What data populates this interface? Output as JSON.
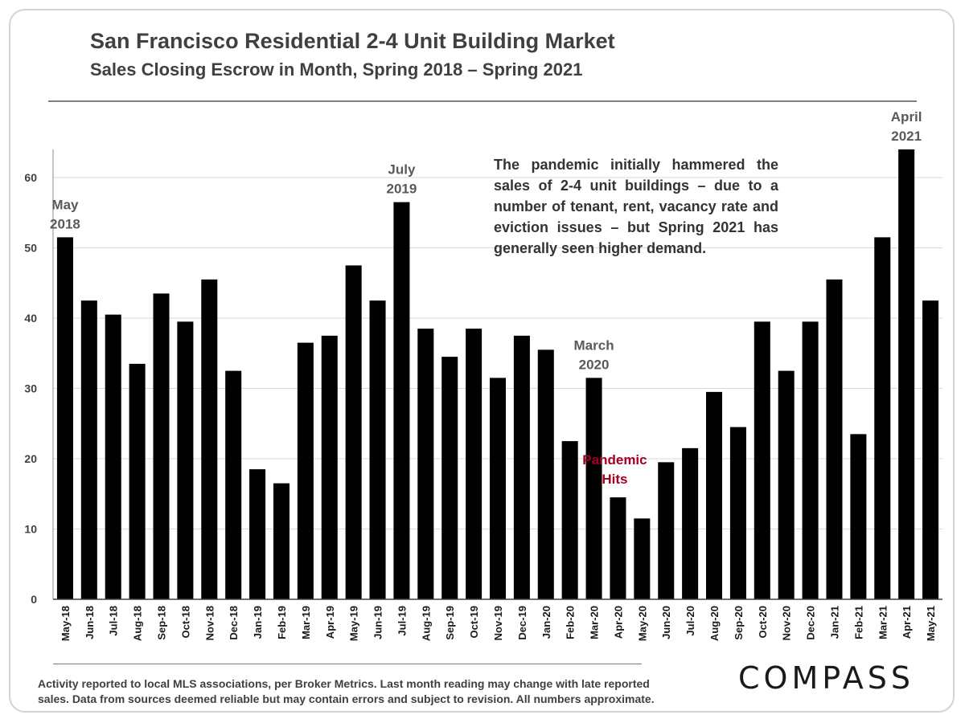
{
  "header": {
    "title": "San Francisco Residential 2-4 Unit Building Market",
    "subtitle": "Sales Closing Escrow in Month, Spring 2018 – Spring 2021"
  },
  "note": "The pandemic initially hammered the sales of 2-4 unit buildings – due to a number of tenant, rent, vacancy rate and eviction issues – but Spring 2021 has generally seen higher demand.",
  "footnote": "Activity reported to local MLS associations, per Broker Metrics. Last month reading may change with late reported sales. Data from sources deemed reliable but may contain errors and subject to revision. All numbers approximate.",
  "logo": "COMPASS",
  "colors": {
    "bar": "#000000",
    "grid": "#d9d9d9",
    "pandemic": "#a50021"
  },
  "chart_data": {
    "type": "bar",
    "title": "San Francisco Residential 2-4 Unit Building Market",
    "subtitle": "Sales Closing Escrow in Month, Spring 2018 – Spring 2021",
    "xlabel": "",
    "ylabel": "",
    "ylim": [
      0,
      64
    ],
    "yticks": [
      0,
      10,
      20,
      30,
      40,
      50,
      60
    ],
    "grid": true,
    "categories": [
      "May-18",
      "Jun-18",
      "Jul-18",
      "Aug-18",
      "Sep-18",
      "Oct-18",
      "Nov-18",
      "Dec-18",
      "Jan-19",
      "Feb-19",
      "Mar-19",
      "Apr-19",
      "May-19",
      "Jun-19",
      "Jul-19",
      "Aug-19",
      "Sep-19",
      "Oct-19",
      "Nov-19",
      "Dec-19",
      "Jan-20",
      "Feb-20",
      "Mar-20",
      "Apr-20",
      "May-20",
      "Jun-20",
      "Jul-20",
      "Aug-20",
      "Sep-20",
      "Oct-20",
      "Nov-20",
      "Dec-20",
      "Jan-21",
      "Feb-21",
      "Mar-21",
      "Apr-21",
      "May-21"
    ],
    "values": [
      51.5,
      42.5,
      40.5,
      33.5,
      43.5,
      39.5,
      45.5,
      32.5,
      18.5,
      16.5,
      36.5,
      37.5,
      47.5,
      42.5,
      56.5,
      38.5,
      34.5,
      38.5,
      31.5,
      37.5,
      35.5,
      22.5,
      31.5,
      14.5,
      11.5,
      19.5,
      21.5,
      29.5,
      24.5,
      39.5,
      32.5,
      39.5,
      45.5,
      23.5,
      51.5,
      64,
      42.5
    ],
    "annotations": [
      {
        "index": 0,
        "lines": [
          "May",
          "2018"
        ],
        "style": "normal"
      },
      {
        "index": 14,
        "lines": [
          "July",
          "2019"
        ],
        "style": "normal"
      },
      {
        "index": 22,
        "lines": [
          "March",
          "2020"
        ],
        "style": "normal"
      },
      {
        "index": 23,
        "lines": [
          "Pandemic",
          "Hits"
        ],
        "style": "red"
      },
      {
        "index": 35,
        "lines": [
          "April",
          "2021"
        ],
        "style": "normal"
      }
    ]
  }
}
